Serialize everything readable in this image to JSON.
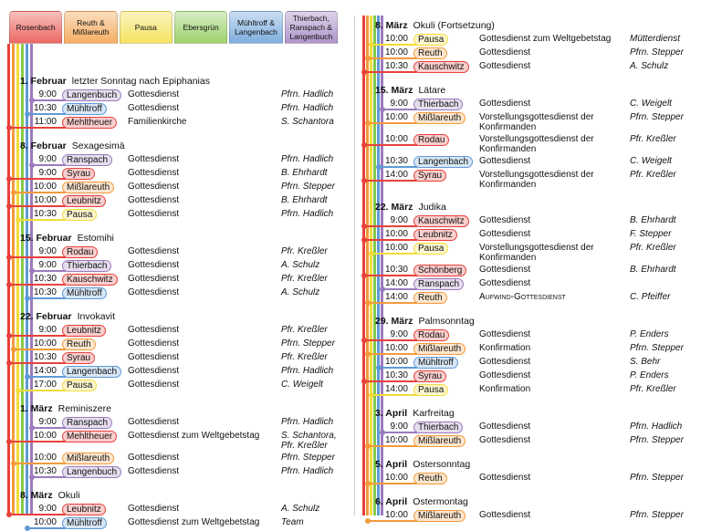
{
  "legend": [
    {
      "label": "Rosenbach",
      "color": "#e8413c"
    },
    {
      "label": "Reuth & Mißlareuth",
      "color": "#f39a3c"
    },
    {
      "label": "Pausa",
      "color": "#f2dc3a"
    },
    {
      "label": "Ebersgrün",
      "color": "#86c84a"
    },
    {
      "label": "Mühltroff & Langenbach",
      "color": "#5f9ad6"
    },
    {
      "label": "Thierbach, Ranspach & Langenbuch",
      "color": "#9b7bbd"
    }
  ],
  "columns": [
    {
      "days": [
        {
          "date": "1. Februar",
          "name": "letzter Sonntag nach Epiphanias",
          "entries": [
            {
              "time": "9:00",
              "place": "Langenbuch",
              "service": "Gottesdienst",
              "pastor": "Pfrn. Hadlich",
              "color": "#9b7bbd"
            },
            {
              "time": "10:30",
              "place": "Mühltroff",
              "service": "Gottesdienst",
              "pastor": "Pfrn. Hadlich",
              "color": "#5f9ad6"
            },
            {
              "time": "11:00",
              "place": "Mehltheuer",
              "service": "Familienkirche",
              "pastor": "S. Schantora",
              "color": "#e8413c"
            }
          ]
        },
        {
          "date": "8. Februar",
          "name": "Sexagesimä",
          "entries": [
            {
              "time": "9:00",
              "place": "Ranspach",
              "service": "Gottesdienst",
              "pastor": "Pfrn. Hadlich",
              "color": "#9b7bbd"
            },
            {
              "time": "9:00",
              "place": "Syrau",
              "service": "Gottesdienst",
              "pastor": "B. Ehrhardt",
              "color": "#e8413c"
            },
            {
              "time": "10:00",
              "place": "Mißlareuth",
              "service": "Gottesdienst",
              "pastor": "Pfrn. Stepper",
              "color": "#f39a3c"
            },
            {
              "time": "10:00",
              "place": "Leubnitz",
              "service": "Gottesdienst",
              "pastor": "B. Ehrhardt",
              "color": "#e8413c"
            },
            {
              "time": "10:30",
              "place": "Pausa",
              "service": "Gottesdienst",
              "pastor": "Pfrn. Hadlich",
              "color": "#f2dc3a"
            }
          ]
        },
        {
          "date": "15. Februar",
          "name": "Estomihi",
          "entries": [
            {
              "time": "9:00",
              "place": "Rodau",
              "service": "Gottesdienst",
              "pastor": "Pfr. Kreßler",
              "color": "#e8413c"
            },
            {
              "time": "9:00",
              "place": "Thierbach",
              "service": "Gottesdienst",
              "pastor": "A. Schulz",
              "color": "#9b7bbd"
            },
            {
              "time": "10:30",
              "place": "Kauschwitz",
              "service": "Gottesdienst",
              "pastor": "Pfr. Kreßler",
              "color": "#e8413c"
            },
            {
              "time": "10:30",
              "place": "Mühltroff",
              "service": "Gottesdienst",
              "pastor": "A. Schulz",
              "color": "#5f9ad6"
            }
          ]
        },
        {
          "date": "22. Februar",
          "name": "Invokavit",
          "entries": [
            {
              "time": "9:00",
              "place": "Leubnitz",
              "service": "Gottesdienst",
              "pastor": "Pfr. Kreßler",
              "color": "#e8413c"
            },
            {
              "time": "10:00",
              "place": "Reuth",
              "service": "Gottesdienst",
              "pastor": "Pfrn. Stepper",
              "color": "#f39a3c"
            },
            {
              "time": "10:30",
              "place": "Syrau",
              "service": "Gottesdienst",
              "pastor": "Pfr. Kreßler",
              "color": "#e8413c"
            },
            {
              "time": "14:00",
              "place": "Langenbach",
              "service": "Gottesdienst",
              "pastor": "Pfrn. Hadlich",
              "color": "#5f9ad6"
            },
            {
              "time": "17:00",
              "place": "Pausa",
              "service": "Gottesdienst",
              "pastor": "C. Weigelt",
              "color": "#f2dc3a"
            }
          ]
        },
        {
          "date": "1. März",
          "name": "Reminiszere",
          "entries": [
            {
              "time": "9:00",
              "place": "Ranspach",
              "service": "Gottesdienst",
              "pastor": "Pfrn. Hadlich",
              "color": "#9b7bbd"
            },
            {
              "time": "10:00",
              "place": "Mehltheuer",
              "service": "Gottesdienst zum Weltgebetstag",
              "pastor": "S. Schantora, Pfr. Kreßler",
              "color": "#e8413c"
            },
            {
              "time": "10:00",
              "place": "Mißlareuth",
              "service": "Gottesdienst",
              "pastor": "Pfrn. Stepper",
              "color": "#f39a3c"
            },
            {
              "time": "10:30",
              "place": "Langenbuch",
              "service": "Gottesdienst",
              "pastor": "Pfrn. Hadlich",
              "color": "#9b7bbd"
            }
          ]
        },
        {
          "date": "8. März",
          "name": "Okuli",
          "entries": [
            {
              "time": "9:00",
              "place": "Leubnitz",
              "service": "Gottesdienst",
              "pastor": "A. Schulz",
              "color": "#e8413c"
            },
            {
              "time": "10:00",
              "place": "Mühltroff",
              "service": "Gottesdienst zum Weltgebetstag",
              "pastor": "Team",
              "color": "#5f9ad6"
            }
          ]
        }
      ]
    },
    {
      "days": [
        {
          "date": "8. März",
          "name": "Okuli (Fortsetzung)",
          "entries": [
            {
              "time": "10:00",
              "place": "Pausa",
              "service": "Gottesdienst zum Weltgebetstag",
              "pastor": "Mütterdienst",
              "color": "#f2dc3a"
            },
            {
              "time": "10:00",
              "place": "Reuth",
              "service": "Gottesdienst",
              "pastor": "Pfrn. Stepper",
              "color": "#f39a3c"
            },
            {
              "time": "10:30",
              "place": "Kauschwitz",
              "service": "Gottesdienst",
              "pastor": "A. Schulz",
              "color": "#e8413c"
            }
          ]
        },
        {
          "date": "15. März",
          "name": "Lätare",
          "entries": [
            {
              "time": "9:00",
              "place": "Thierbach",
              "service": "Gottesdienst",
              "pastor": "C. Weigelt",
              "color": "#9b7bbd"
            },
            {
              "time": "10:00",
              "place": "Mißlareuth",
              "service": "Vorstellungsgottesdienst der Konfirmanden",
              "pastor": "Pfrn. Stepper",
              "color": "#f39a3c"
            },
            {
              "time": "10:00",
              "place": "Rodau",
              "service": "Vorstellungsgottesdienst der Konfirmanden",
              "pastor": "Pfr. Kreßler",
              "color": "#e8413c"
            },
            {
              "time": "10:30",
              "place": "Langenbach",
              "service": "Gottesdienst",
              "pastor": "C. Weigelt",
              "color": "#5f9ad6"
            },
            {
              "time": "14:00",
              "place": "Syrau",
              "service": "Vorstellungsgottesdienst der Konfirmanden",
              "pastor": "Pfr. Kreßler",
              "color": "#e8413c"
            }
          ]
        },
        {
          "date": "22. März",
          "name": "Judika",
          "entries": [
            {
              "time": "9:00",
              "place": "Kauschwitz",
              "service": "Gottesdienst",
              "pastor": "B. Ehrhardt",
              "color": "#e8413c"
            },
            {
              "time": "10:00",
              "place": "Leubnitz",
              "service": "Gottesdienst",
              "pastor": "F. Stepper",
              "color": "#e8413c"
            },
            {
              "time": "10:00",
              "place": "Pausa",
              "service": "Vorstellungsgottesdienst der Konfirmanden",
              "pastor": "Pfr. Kreßler",
              "color": "#f2dc3a"
            },
            {
              "time": "10:30",
              "place": "Schönberg",
              "service": "Gottesdienst",
              "pastor": "B. Ehrhardt",
              "color": "#e8413c"
            },
            {
              "time": "14:00",
              "place": "Ranspach",
              "service": "Gottesdienst",
              "color": "#9b7bbd"
            },
            {
              "time": "14:00",
              "place": "Reuth",
              "service": "Aufwind-Gottesdienst",
              "pastor": "C. Pfeiffer",
              "color": "#f39a3c"
            }
          ]
        },
        {
          "date": "29. März",
          "name": "Palmsonntag",
          "entries": [
            {
              "time": "9:00",
              "place": "Rodau",
              "service": "Gottesdienst",
              "pastor": "P. Enders",
              "color": "#e8413c"
            },
            {
              "time": "10:00",
              "place": "Mißlareuth",
              "service": "Konfirmation",
              "pastor": "Pfrn. Stepper",
              "color": "#f39a3c"
            },
            {
              "time": "10:00",
              "place": "Mühltroff",
              "service": "Gottesdienst",
              "pastor": "S. Behr",
              "color": "#5f9ad6"
            },
            {
              "time": "10:30",
              "place": "Syrau",
              "service": "Gottesdienst",
              "pastor": "P. Enders",
              "color": "#e8413c"
            },
            {
              "time": "14:00",
              "place": "Pausa",
              "service": "Konfirmation",
              "pastor": "Pfr. Kreßler",
              "color": "#f2dc3a"
            }
          ]
        },
        {
          "date": "3. April",
          "name": "Karfreitag",
          "entries": [
            {
              "time": "9:00",
              "place": "Thierbach",
              "service": "Gottesdienst",
              "pastor": "Pfrn. Hadlich",
              "color": "#9b7bbd"
            },
            {
              "time": "10:00",
              "place": "Mißlareuth",
              "service": "Gottesdienst",
              "pastor": "Pfrn. Stepper",
              "color": "#f39a3c"
            }
          ]
        },
        {
          "date": "5. April",
          "name": "Ostersonntag",
          "entries": [
            {
              "time": "10:00",
              "place": "Reuth",
              "service": "Gottesdienst",
              "pastor": "Pfrn. Stepper",
              "color": "#f39a3c"
            }
          ]
        },
        {
          "date": "6. April",
          "name": "Ostermontag",
          "entries": [
            {
              "time": "10:00",
              "place": "Mißlareuth",
              "service": "Gottesdienst",
              "pastor": "Pfrn. Stepper",
              "color": "#f39a3c"
            }
          ]
        }
      ]
    }
  ]
}
